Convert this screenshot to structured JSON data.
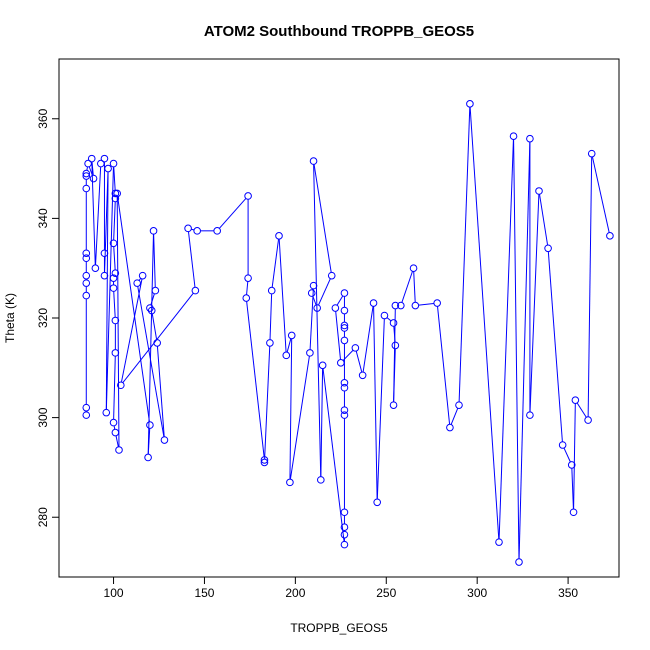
{
  "chart_data": {
    "type": "line",
    "title": "ATOM2 Southbound TROPPB_GEOS5",
    "xlabel": "TROPPB_GEOS5",
    "ylabel": "Theta (K)",
    "xlim": [
      70,
      378
    ],
    "ylim": [
      268,
      372
    ],
    "xticks": [
      100,
      150,
      200,
      250,
      300,
      350
    ],
    "yticks": [
      280,
      300,
      320,
      340,
      360
    ],
    "color": "#0000ff",
    "grid": false,
    "series": [
      {
        "marker": "open-circle",
        "points": [
          [
            85,
            300.5
          ],
          [
            85,
            302
          ],
          [
            85,
            324.5
          ],
          [
            85,
            327
          ],
          [
            85,
            328.5
          ],
          [
            85,
            332
          ],
          [
            85,
            333
          ],
          [
            85,
            346
          ],
          [
            85,
            348.5
          ],
          [
            85,
            349
          ],
          [
            86,
            351
          ],
          [
            89,
            348
          ],
          [
            88,
            352
          ],
          [
            90,
            330
          ],
          [
            93,
            351
          ],
          [
            95,
            352
          ],
          [
            95,
            333
          ],
          [
            95,
            328.5
          ],
          [
            97,
            350
          ],
          [
            96,
            301
          ],
          [
            100,
            351
          ],
          [
            101,
            345
          ],
          [
            101,
            344
          ],
          [
            100,
            335
          ],
          [
            101,
            329
          ],
          [
            100,
            328
          ],
          [
            100,
            326
          ],
          [
            101,
            319.5
          ],
          [
            101,
            313
          ],
          [
            100,
            299
          ],
          [
            101,
            297
          ],
          [
            103,
            293.5
          ],
          [
            102,
            345
          ],
          [
            120,
            298.5
          ],
          [
            119,
            292
          ],
          [
            122,
            337.5
          ],
          [
            123,
            325.5
          ],
          [
            120,
            322
          ],
          [
            121,
            321.5
          ],
          [
            124,
            315
          ],
          [
            128,
            295.5
          ],
          [
            113,
            327
          ],
          [
            116,
            328.5
          ],
          [
            104,
            306.5
          ],
          [
            145,
            325.5
          ],
          [
            141,
            338
          ],
          [
            146,
            337.5
          ],
          [
            157,
            337.5
          ],
          [
            174,
            344.5
          ],
          [
            174,
            328
          ],
          [
            173,
            324
          ],
          [
            183,
            291.5
          ],
          [
            183,
            291
          ],
          [
            186,
            315
          ],
          [
            187,
            325.5
          ],
          [
            191,
            336.5
          ],
          [
            195,
            312.5
          ],
          [
            198,
            316.5
          ],
          [
            197,
            287
          ],
          [
            208,
            313
          ],
          [
            210,
            326.5
          ],
          [
            209,
            325
          ],
          [
            212,
            322
          ],
          [
            220,
            328.5
          ],
          [
            210,
            351.5
          ],
          [
            214,
            287.5
          ],
          [
            215,
            310.5
          ],
          [
            227,
            274.5
          ],
          [
            227,
            276.5
          ],
          [
            227,
            278
          ],
          [
            227,
            281
          ],
          [
            227,
            300.5
          ],
          [
            227,
            301.5
          ],
          [
            227,
            306
          ],
          [
            227,
            307
          ],
          [
            227,
            315.5
          ],
          [
            227,
            318
          ],
          [
            227,
            318.5
          ],
          [
            227,
            321.5
          ],
          [
            227,
            325
          ],
          [
            222,
            322
          ],
          [
            225,
            311
          ],
          [
            233,
            314
          ],
          [
            237,
            308.5
          ],
          [
            243,
            323
          ],
          [
            245,
            283
          ],
          [
            249,
            320.5
          ],
          [
            254,
            319
          ],
          [
            255,
            314.5
          ],
          [
            254,
            302.5
          ],
          [
            255,
            322.5
          ],
          [
            258,
            322.5
          ],
          [
            265,
            330
          ],
          [
            266,
            322.5
          ],
          [
            278,
            323
          ],
          [
            285,
            298
          ],
          [
            290,
            302.5
          ],
          [
            296,
            363
          ],
          [
            312,
            275
          ],
          [
            320,
            356.5
          ],
          [
            323,
            271
          ],
          [
            329,
            356
          ],
          [
            329,
            300.5
          ],
          [
            334,
            345.5
          ],
          [
            339,
            334
          ],
          [
            347,
            294.5
          ],
          [
            352,
            290.5
          ],
          [
            353,
            281
          ],
          [
            354,
            303.5
          ],
          [
            361,
            299.5
          ],
          [
            363,
            353
          ],
          [
            373,
            336.5
          ]
        ]
      }
    ]
  }
}
